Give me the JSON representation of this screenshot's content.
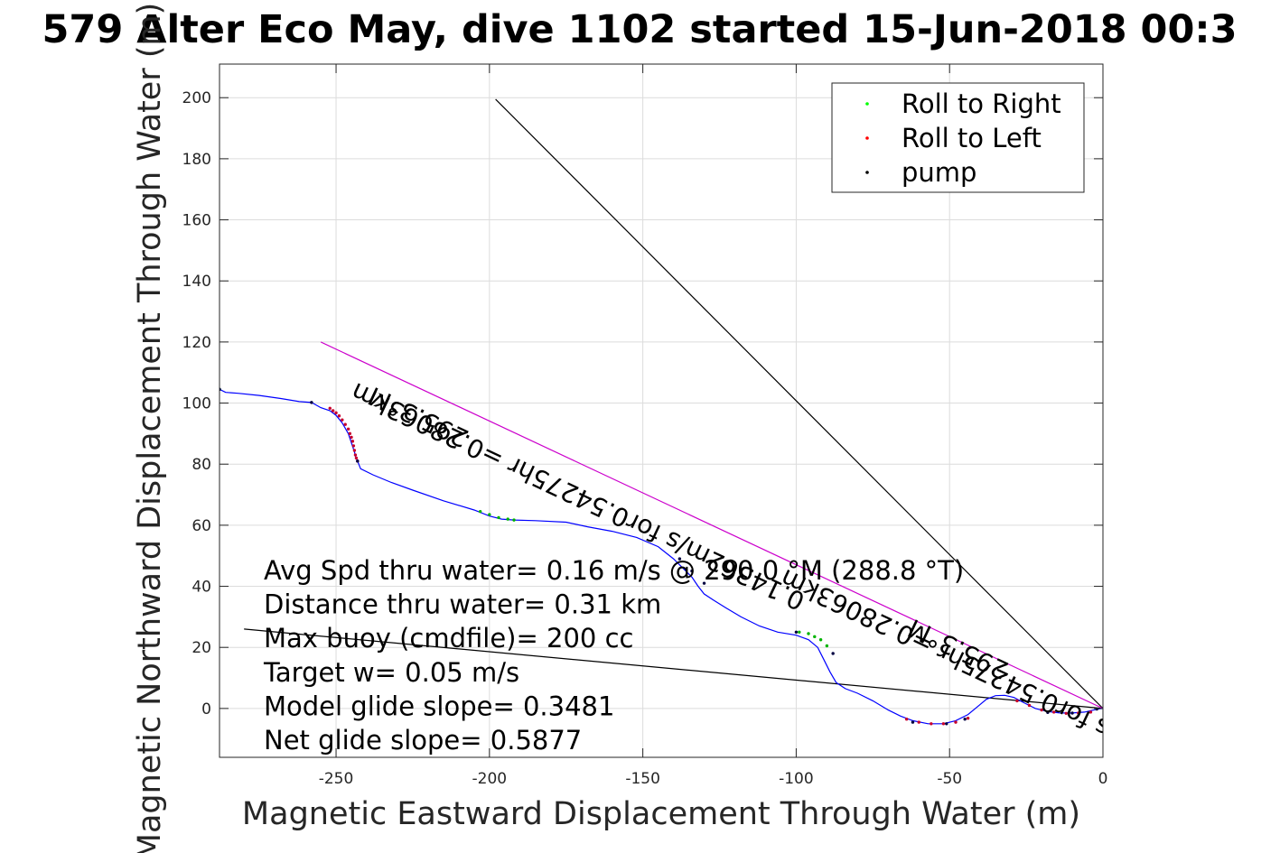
{
  "chart_data": {
    "type": "line",
    "title": "579 Alter Eco May, dive 1102 started 15-Jun-2018 00:3",
    "xlabel": "Magnetic Eastward Displacement Through Water (m)",
    "ylabel": "Magnetic Northward Displacement Through Water (m)",
    "xlim": [
      -288,
      0
    ],
    "ylim": [
      -16,
      211
    ],
    "xticks": [
      -250,
      -200,
      -150,
      -100,
      -50,
      0
    ],
    "yticks": [
      0,
      20,
      40,
      60,
      80,
      100,
      120,
      140,
      160,
      180,
      200
    ],
    "grid": true,
    "legend": {
      "placement": "top-right",
      "entries": [
        {
          "label": "Roll to Right",
          "color": "#00ff00"
        },
        {
          "label": "Roll to Left",
          "color": "#ff0000"
        },
        {
          "label": "pump",
          "color": "#000000"
        }
      ]
    },
    "track": {
      "color": "#0000ff",
      "x": [
        -288,
        -286,
        -282,
        -275,
        -268,
        -262,
        -258,
        -255,
        -252,
        -250,
        -248,
        -246,
        -245,
        -244,
        -243.5,
        -243,
        -242,
        -238,
        -232,
        -225,
        -215,
        -205,
        -200,
        -196,
        -192,
        -185,
        -175,
        -168,
        -160,
        -152,
        -145,
        -140,
        -137,
        -134,
        -132,
        -130,
        -127,
        -123,
        -118,
        -112,
        -106,
        -100,
        -96,
        -93,
        -91,
        -89,
        -87,
        -84,
        -80,
        -75,
        -70,
        -66,
        -62,
        -57,
        -52,
        -48,
        -44,
        -41,
        -38,
        -35,
        -32,
        -29,
        -26,
        -22,
        -18,
        -14,
        -10,
        -6,
        -3,
        -1,
        0
      ],
      "y": [
        104.5,
        103.5,
        103.2,
        102.5,
        101.5,
        100.5,
        100.2,
        98.5,
        97.5,
        96,
        93.5,
        90,
        87,
        84,
        82,
        81,
        78.5,
        76.5,
        74,
        71.5,
        68,
        65,
        63,
        62,
        61.7,
        61.5,
        61,
        59.5,
        58,
        56,
        53,
        49,
        46,
        43,
        40,
        37.5,
        35.5,
        33,
        30,
        27,
        25,
        24,
        22.5,
        20,
        16,
        12,
        8.5,
        6.5,
        5,
        2.5,
        -0.5,
        -2.5,
        -4,
        -5,
        -5,
        -4,
        -2,
        0.5,
        3,
        4.2,
        4.3,
        3.6,
        2,
        0,
        -1,
        -1.5,
        -1.5,
        -1.2,
        -0.5,
        -0.1,
        0
      ]
    },
    "roll_right_x": [
      -288,
      -203,
      -200,
      -197,
      -194,
      -192,
      -99,
      -96,
      -94,
      -92,
      -90
    ],
    "roll_right_y": [
      104.5,
      64.5,
      63.5,
      62.5,
      62,
      61.7,
      25,
      24.5,
      23.5,
      22.5,
      20.5
    ],
    "roll_left_x": [
      -252,
      -251,
      -250,
      -249,
      -248,
      -247,
      -246,
      -245.5,
      -245,
      -244.6,
      -244.3,
      -244,
      -243.7,
      -243.4,
      -243,
      -64,
      -60,
      -56,
      -52,
      -48,
      -44,
      -28,
      -24,
      -20,
      -16,
      -12,
      -8,
      -4
    ],
    "roll_left_y": [
      98.3,
      97.5,
      96.8,
      95.8,
      94.5,
      93,
      91.5,
      90,
      88.8,
      87.5,
      86,
      84.5,
      83,
      82,
      81,
      -3.5,
      -4.5,
      -5,
      -5,
      -4.5,
      -3.2,
      2.5,
      1,
      -0.5,
      -1.2,
      -1.6,
      -1.5,
      -1.2
    ],
    "pump_x": [
      -288,
      -258,
      -243,
      -138,
      -134,
      -130,
      -100,
      -88,
      -62,
      -51,
      -45,
      -18,
      -10,
      -2
    ],
    "pump_y": [
      104.5,
      100.2,
      81,
      49,
      45,
      41,
      25,
      18,
      -4.5,
      -5,
      -3.5,
      -1.3,
      -1.5,
      -0.2
    ],
    "reference_lines": [
      {
        "color": "#000000",
        "x": [
          -198,
          0
        ],
        "y": [
          199.5,
          0
        ]
      },
      {
        "color": "#000000",
        "x": [
          -280,
          0
        ],
        "y": [
          26,
          0
        ]
      },
      {
        "color": "#cc00cc",
        "x": [
          -255,
          0
        ],
        "y": [
          120,
          0
        ]
      }
    ],
    "annotations": [
      {
        "text": "295.3°M",
        "x": -222,
        "y": 98,
        "rotate": 205.3
      },
      {
        "text": "0.14362m/s for0.54275hr =0.28063km",
        "x": -170,
        "y": 72,
        "rotate": 205.3
      },
      {
        "text": "295.3°M",
        "x": -46,
        "y": 22,
        "rotate": 205.3
      },
      {
        "text": "0.14362m/s for0.54275hr =0.28063km",
        "x": -30,
        "y": 11,
        "rotate": 205.3
      }
    ],
    "stats": [
      "Avg Spd thru water=  0.16 m/s @ 290.0 °M (288.8 °T)",
      "Distance thru water=  0.31 km",
      "Max buoy (cmdfile)= 200 cc",
      "Target w= 0.05 m/s",
      "Model glide slope= 0.3481",
      "Net glide slope= 0.5877"
    ]
  }
}
